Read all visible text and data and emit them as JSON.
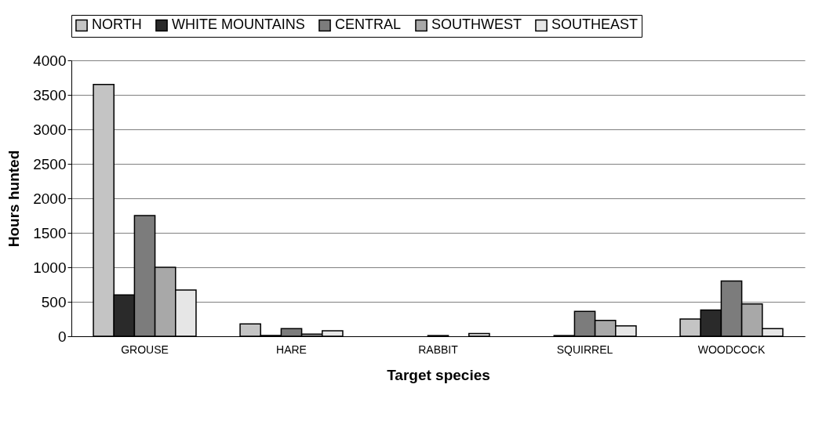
{
  "chart_data": {
    "type": "bar",
    "xlabel": "Target species",
    "ylabel": "Hours hunted",
    "categories": [
      "GROUSE",
      "HARE",
      "RABBIT",
      "SQUIRREL",
      "WOODCOCK"
    ],
    "series": [
      {
        "name": "NORTH",
        "color": "#c4c4c4",
        "values": [
          3650,
          180,
          0,
          0,
          250
        ]
      },
      {
        "name": "WHITE MOUNTAINS",
        "color": "#2a2a2a",
        "values": [
          600,
          10,
          0,
          10,
          380
        ]
      },
      {
        "name": "CENTRAL",
        "color": "#7c7c7c",
        "values": [
          1750,
          110,
          10,
          360,
          800
        ]
      },
      {
        "name": "SOUTHWEST",
        "color": "#a8a8a8",
        "values": [
          1000,
          30,
          0,
          230,
          470
        ]
      },
      {
        "name": "SOUTHEAST",
        "color": "#e6e6e6",
        "values": [
          670,
          80,
          40,
          150,
          110
        ]
      }
    ],
    "ylim": [
      0,
      4000
    ],
    "yticks": [
      0,
      500,
      1000,
      1500,
      2000,
      2500,
      3000,
      3500,
      4000
    ],
    "grid": "y",
    "legend": "top"
  }
}
